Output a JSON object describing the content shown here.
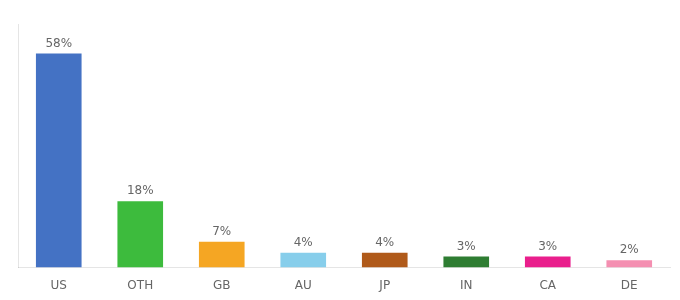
{
  "chart_data": {
    "type": "bar",
    "categories": [
      "US",
      "OTH",
      "GB",
      "AU",
      "JP",
      "IN",
      "CA",
      "DE"
    ],
    "values": [
      58,
      18,
      7,
      4,
      4,
      3,
      3,
      2
    ],
    "value_labels": [
      "58%",
      "18%",
      "7%",
      "4%",
      "4%",
      "3%",
      "3%",
      "2%"
    ],
    "colors": [
      "#4472c4",
      "#3dbb3d",
      "#f5a623",
      "#87ceeb",
      "#b05a1a",
      "#2e7d32",
      "#e91e8c",
      "#f48fb1"
    ],
    "ylim": [
      0,
      66
    ],
    "data_labels": true,
    "tick_labels": "x",
    "grid": false
  }
}
